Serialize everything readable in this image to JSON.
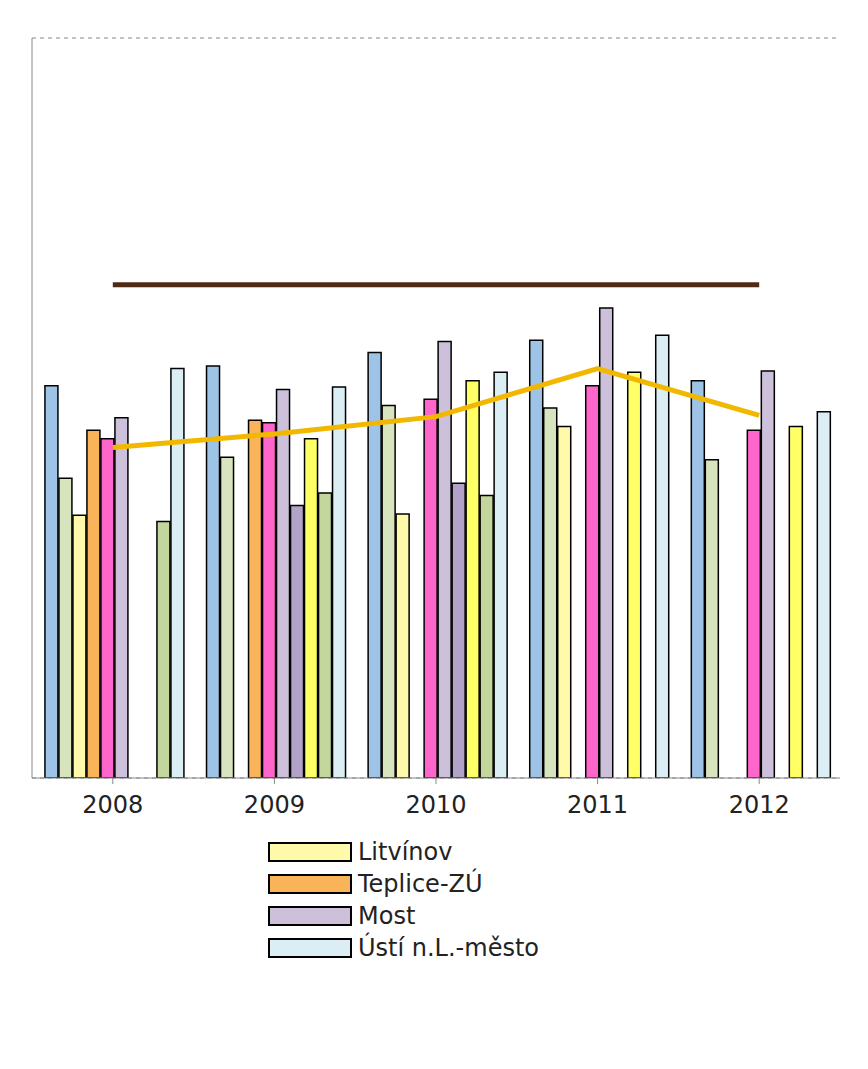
{
  "chart_data": {
    "type": "bar",
    "categories": [
      "2008",
      "2009",
      "2010",
      "2011",
      "2012"
    ],
    "ylim": [
      0,
      60
    ],
    "yticks": [
      0,
      10,
      20,
      30,
      40,
      50,
      60
    ],
    "grid": true,
    "tick_labels": "x",
    "series": [
      {
        "color": "#9DC3E6",
        "values": [
          31.8,
          33.4,
          34.5,
          35.5,
          32.2
        ]
      },
      {
        "color": "#D7E4BD",
        "values": [
          24.3,
          26.0,
          30.2,
          30.0,
          25.8
        ]
      },
      {
        "name": "Litvínov",
        "color": "#FFFAAA",
        "values": [
          21.3,
          null,
          21.4,
          28.5,
          null
        ]
      },
      {
        "name": "Teplice-ZÚ",
        "color": "#F9B45A",
        "values": [
          28.2,
          29.0,
          null,
          null,
          null
        ]
      },
      {
        "color": "#FF66CC",
        "values": [
          27.5,
          28.8,
          30.7,
          31.8,
          28.2
        ]
      },
      {
        "name": "Most",
        "color": "#CCC0DA",
        "values": [
          29.2,
          31.5,
          35.4,
          38.1,
          33.0
        ]
      },
      {
        "color": "#B3A2C7",
        "values": [
          null,
          22.1,
          23.9,
          null,
          null
        ]
      },
      {
        "color": "#FFFF66",
        "values": [
          null,
          27.5,
          32.2,
          32.9,
          28.5
        ]
      },
      {
        "color": "#C3D69B",
        "values": [
          20.8,
          23.1,
          22.9,
          null,
          null
        ]
      },
      {
        "name": "Ústí n.L.-město",
        "color": "#DBEEF4",
        "values": [
          33.2,
          31.7,
          32.9,
          35.9,
          29.7
        ]
      },
      {
        "type": "line",
        "color": "#F2B800",
        "values": [
          26.8,
          27.9,
          29.3,
          33.2,
          29.4
        ]
      },
      {
        "type": "line",
        "color": "#4F2A14",
        "values": [
          40,
          40,
          40,
          40,
          40
        ]
      }
    ]
  }
}
